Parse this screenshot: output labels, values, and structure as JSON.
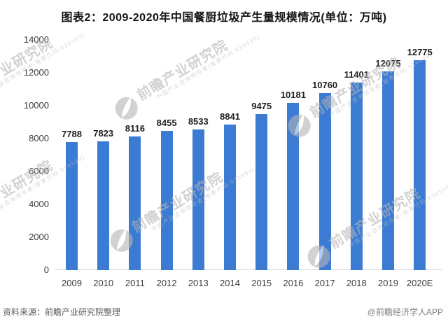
{
  "title": "图表2：2009-2020年中国餐厨垃圾产生量规模情况(单位：万吨)",
  "chart_data": {
    "type": "bar",
    "title": "图表2：2009-2020年中国餐厨垃圾产生量规模情况(单位：万吨)",
    "unit": "万吨",
    "categories": [
      "2009",
      "2010",
      "2011",
      "2012",
      "2013",
      "2014",
      "2015",
      "2016",
      "2017",
      "2018",
      "2019",
      "2020E"
    ],
    "values": [
      7788,
      7823,
      8116,
      8455,
      8533,
      8841,
      9475,
      10181,
      10760,
      11401,
      12075,
      12775
    ],
    "xlabel": "",
    "ylabel": "",
    "ylim": [
      0,
      14000
    ],
    "ytick_step": 2000,
    "grid": false,
    "legend": false,
    "value_labels": true,
    "bar_color": "#3b7bd3",
    "axis_line_color": "#d9d9d9",
    "label_color": "#1f1f1f",
    "tick_color": "#3d3d3d"
  },
  "watermark": {
    "logo_icon": "qianzhan-eye-logo-icon",
    "text": "前瞻产业研究院",
    "subtext": "中国产业咨询领导者(股票代码:839599)"
  },
  "footer": {
    "source": "资料来源：前瞻产业研究院整理",
    "credit": "@前瞻经济学人APP"
  }
}
